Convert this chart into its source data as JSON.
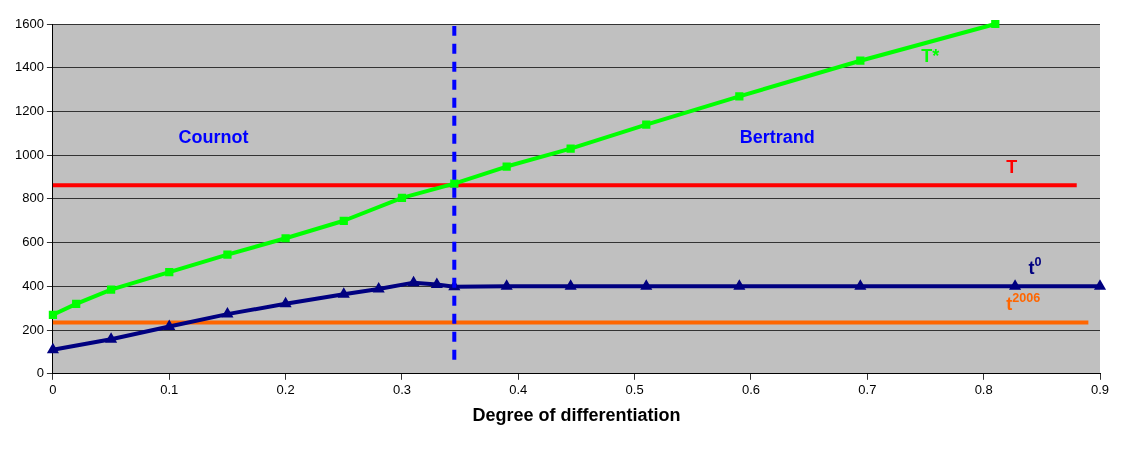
{
  "chart_data": {
    "type": "line",
    "xlabel": "Degree of differentiation",
    "xlim": [
      0,
      0.9
    ],
    "xticks": [
      0,
      0.1,
      0.2,
      0.3,
      0.4,
      0.5,
      0.6,
      0.7,
      0.8,
      0.9
    ],
    "ylim": [
      0,
      1600
    ],
    "yticks": [
      0,
      200,
      400,
      600,
      800,
      1000,
      1200,
      1400,
      1600
    ],
    "grid": "y",
    "legend": false,
    "line_style": "solid",
    "series": [
      {
        "name": "T*",
        "color": "#00ff00",
        "marker": "square",
        "x": [
          0,
          0.02,
          0.05,
          0.1,
          0.15,
          0.2,
          0.25,
          0.3,
          0.345,
          0.39,
          0.445,
          0.51,
          0.59,
          0.694,
          0.81
        ],
        "values": [
          270,
          320,
          385,
          465,
          545,
          620,
          700,
          805,
          870,
          948,
          1030,
          1140,
          1269,
          1432,
          1600
        ]
      },
      {
        "name": "T",
        "color": "#ff0000",
        "marker": "none",
        "x": [
          0,
          0.88
        ],
        "values": [
          862,
          862
        ]
      },
      {
        "name": "t$^{0}$",
        "color": "#000080",
        "marker": "triangle",
        "x": [
          0,
          0.05,
          0.1,
          0.15,
          0.2,
          0.25,
          0.28,
          0.31,
          0.33,
          0.345,
          0.39,
          0.445,
          0.51,
          0.59,
          0.694,
          0.827,
          0.9
        ],
        "values": [
          110,
          158,
          216,
          273,
          320,
          364,
          388,
          417,
          408,
          398,
          400,
          400,
          400,
          400,
          400,
          400,
          400
        ]
      },
      {
        "name": "t$^{2006}$",
        "color": "#ff6600",
        "marker": "none",
        "x": [
          0,
          0.89
        ],
        "values": [
          235,
          235
        ]
      }
    ],
    "ref_lines": [
      {
        "axis": "x",
        "value": 0.345,
        "color": "#0000ff",
        "line_style": "dashed"
      }
    ],
    "annotations": [
      "Cournot",
      "Bertrand"
    ]
  }
}
